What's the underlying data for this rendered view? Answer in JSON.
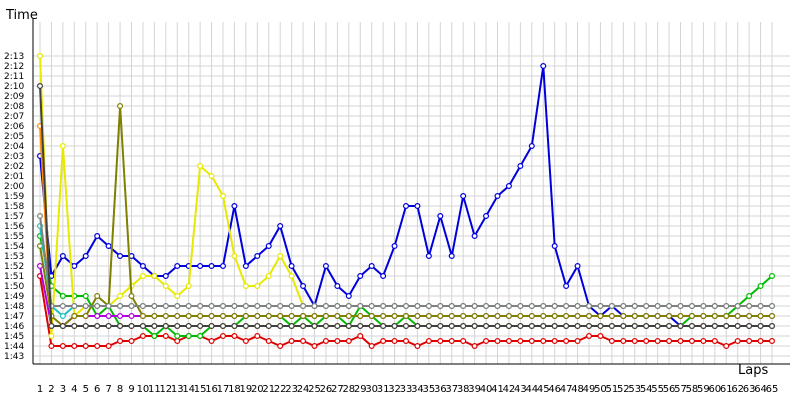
{
  "chart_data": {
    "type": "line",
    "title": "",
    "xlabel": "Laps",
    "ylabel": "Time",
    "grid": true,
    "legend": "none",
    "x_categories": [
      "1",
      "2",
      "3",
      "4",
      "5",
      "6",
      "7",
      "8",
      "9",
      "10",
      "11",
      "12",
      "13",
      "14",
      "15",
      "16",
      "17",
      "18",
      "19",
      "20",
      "21",
      "22",
      "23",
      "24",
      "25",
      "26",
      "27",
      "28",
      "29",
      "30",
      "31",
      "32",
      "33",
      "34",
      "35",
      "36",
      "37",
      "38",
      "39",
      "40",
      "41",
      "42",
      "43",
      "44",
      "45",
      "46",
      "47",
      "48",
      "49",
      "50",
      "51",
      "52",
      "53",
      "54",
      "55",
      "56",
      "57",
      "58",
      "59",
      "60",
      "61",
      "62",
      "63",
      "64",
      "65"
    ],
    "y_tick_labels": [
      "1:43",
      "1:44",
      "1:45",
      "1:46",
      "1:47",
      "1:48",
      "1:49",
      "1:50",
      "1:51",
      "1:52",
      "1:53",
      "1:54",
      "1:55",
      "1:56",
      "1:57",
      "1:58",
      "1:59",
      "2:00",
      "2:01",
      "2:02",
      "2:03",
      "2:04",
      "2:05",
      "2:06",
      "2:07",
      "2:08",
      "2:09",
      "2:10",
      "2:11",
      "2:12",
      "2:13"
    ],
    "y_unit": "seconds",
    "ylim": [
      102.5,
      134.5
    ],
    "series": [
      {
        "color": "#e00000",
        "values": [
          111,
          104,
          104,
          104,
          104,
          104,
          104,
          104.5,
          104.5,
          105,
          105,
          105,
          104.5,
          105,
          105,
          104.5,
          105,
          105,
          104.5,
          105,
          104.5,
          104,
          104.5,
          104.5,
          104,
          104.5,
          104.5,
          104.5,
          105,
          104,
          104.5,
          104.5,
          104.5,
          104,
          104.5,
          104.5,
          104.5,
          104.5,
          104,
          104.5,
          104.5,
          104.5,
          104.5,
          104.5,
          104.5,
          104.5,
          104.5,
          104.5,
          105,
          105,
          104.5,
          104.5,
          104.5,
          104.5,
          104.5,
          104.5,
          104.5,
          104.5,
          104.5,
          104.5,
          104,
          104.5,
          104.5,
          104.5,
          104.5
        ]
      },
      {
        "color": "#0000dd",
        "values": [
          123,
          111,
          113,
          112,
          113,
          115,
          114,
          113,
          113,
          112,
          111,
          111,
          112,
          112,
          112,
          112,
          112,
          118,
          112,
          113,
          114,
          116,
          112,
          110,
          108,
          112,
          110,
          109,
          111,
          112,
          111,
          114,
          118,
          118,
          113,
          117,
          113,
          119,
          115,
          117,
          119,
          120,
          122,
          124,
          132,
          114,
          110,
          112,
          108,
          107,
          108,
          107,
          107,
          107,
          107,
          107,
          106,
          106,
          106,
          106,
          106,
          106,
          106,
          106,
          106
        ]
      },
      {
        "color": "#00bb00",
        "values": [
          115,
          110,
          109,
          109,
          109,
          107,
          108,
          106,
          106,
          106,
          105,
          106,
          105,
          105,
          105,
          106,
          106,
          106,
          107,
          107,
          107,
          107,
          106,
          107,
          106,
          107,
          107,
          106,
          108,
          107,
          106,
          106,
          107,
          106,
          106,
          106,
          106,
          106,
          106,
          106,
          106,
          106,
          106,
          106,
          106,
          106,
          106,
          106,
          106,
          106,
          106,
          106,
          106,
          106,
          106,
          106,
          106,
          107,
          107,
          107,
          107,
          108,
          109,
          110,
          111
        ]
      },
      {
        "color": "#e8e800",
        "values": [
          133,
          105,
          124,
          107,
          108,
          108,
          108,
          109,
          110,
          111,
          111,
          110,
          109,
          110,
          122,
          121,
          119,
          113,
          110,
          110,
          111,
          113,
          111,
          108,
          108,
          108,
          108,
          108,
          108,
          108,
          108,
          108,
          108,
          108,
          108,
          108,
          108,
          108,
          108,
          108,
          108,
          108,
          108,
          108,
          108,
          108,
          108,
          108,
          108,
          108,
          108,
          108,
          108,
          108,
          108,
          108,
          108,
          108,
          108,
          108,
          108,
          108,
          108,
          108,
          108
        ]
      },
      {
        "color": "#b000e0",
        "values": [
          112,
          106,
          106,
          107,
          107,
          107,
          107,
          107,
          107,
          107,
          107,
          107,
          107,
          107,
          107,
          107,
          107,
          107,
          107,
          107,
          107,
          107,
          107,
          107,
          107,
          107,
          107,
          107,
          107,
          107,
          107,
          107,
          107,
          107,
          107,
          107,
          107,
          107,
          107,
          107,
          107,
          107,
          107,
          107,
          107,
          107,
          107,
          107,
          107,
          107,
          107,
          107,
          107,
          107,
          107,
          107,
          107,
          107,
          107,
          107,
          107,
          107,
          107,
          107,
          107
        ]
      },
      {
        "color": "#808000",
        "values": [
          114,
          107,
          106,
          107,
          107,
          109,
          108,
          128,
          109,
          107,
          107,
          107,
          107,
          107,
          107,
          107,
          107,
          107,
          107,
          107,
          107,
          107,
          107,
          107,
          107,
          107,
          107,
          107,
          107,
          107,
          107,
          107,
          107,
          107,
          107,
          107,
          107,
          107,
          107,
          107,
          107,
          107,
          107,
          107,
          107,
          107,
          107,
          107,
          107,
          107,
          107,
          107,
          107,
          107,
          107,
          107,
          107,
          107,
          107,
          107,
          107,
          107,
          107,
          107,
          107
        ]
      },
      {
        "color": "#20c0c0",
        "values": [
          116,
          108,
          107,
          108,
          108,
          108,
          108,
          108,
          108,
          108,
          108,
          108,
          108,
          108,
          108,
          108,
          108,
          108,
          108,
          108,
          108,
          108,
          108,
          108,
          108,
          108,
          108,
          108,
          108,
          108,
          108,
          108,
          108,
          108,
          108,
          108,
          108,
          108,
          108,
          108,
          108,
          108,
          108,
          108,
          108,
          108,
          108,
          108,
          108,
          108,
          108,
          108,
          108,
          108,
          108,
          108,
          108,
          108,
          108,
          108,
          108,
          108,
          108,
          108,
          108
        ]
      },
      {
        "color": "#ff8c00",
        "values": [
          126,
          106,
          106,
          106,
          106,
          106,
          106,
          106,
          106,
          106,
          106,
          106,
          106,
          106,
          106,
          106,
          106,
          106,
          106,
          106,
          106,
          106,
          106,
          106,
          106,
          106,
          106,
          106,
          106,
          106,
          106,
          106,
          106,
          106,
          106,
          106,
          106,
          106,
          106,
          106,
          106,
          106,
          106,
          106,
          106,
          106,
          106,
          106,
          106,
          106,
          106,
          106,
          106,
          106,
          106,
          106,
          106,
          106,
          106,
          106,
          106,
          106,
          106,
          106,
          106
        ]
      },
      {
        "color": "#808080",
        "values": [
          117,
          108,
          108,
          108,
          108,
          108,
          108,
          108,
          108,
          108,
          108,
          108,
          108,
          108,
          108,
          108,
          108,
          108,
          108,
          108,
          108,
          108,
          108,
          108,
          108,
          108,
          108,
          108,
          108,
          108,
          108,
          108,
          108,
          108,
          108,
          108,
          108,
          108,
          108,
          108,
          108,
          108,
          108,
          108,
          108,
          108,
          108,
          108,
          108,
          108,
          108,
          108,
          108,
          108,
          108,
          108,
          108,
          108,
          108,
          108,
          108,
          108,
          108,
          108,
          108
        ]
      },
      {
        "color": "#404040",
        "values": [
          130,
          106,
          106,
          106,
          106,
          106,
          106,
          106,
          106,
          106,
          106,
          106,
          106,
          106,
          106,
          106,
          106,
          106,
          106,
          106,
          106,
          106,
          106,
          106,
          106,
          106,
          106,
          106,
          106,
          106,
          106,
          106,
          106,
          106,
          106,
          106,
          106,
          106,
          106,
          106,
          106,
          106,
          106,
          106,
          106,
          106,
          106,
          106,
          106,
          106,
          106,
          106,
          106,
          106,
          106,
          106,
          106,
          106,
          106,
          106,
          106,
          106,
          106,
          106,
          106
        ]
      }
    ]
  }
}
